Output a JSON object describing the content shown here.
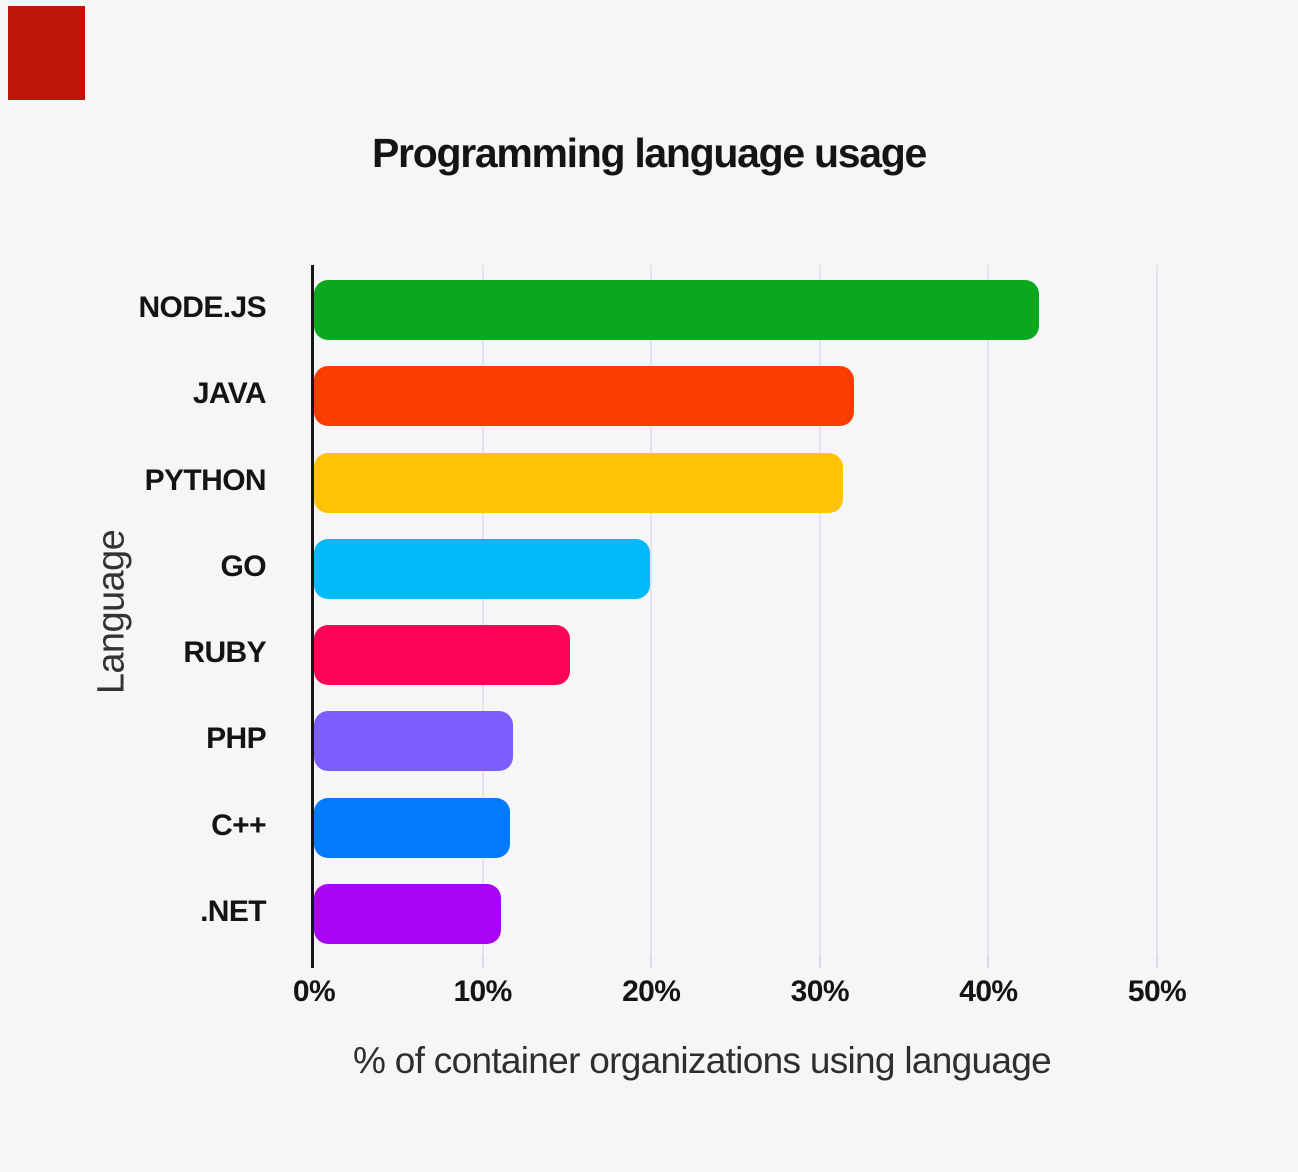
{
  "page": {
    "background_color": "#F6F5F8",
    "corner_marker_color": "#BE1507",
    "text_color": "#141414",
    "grid_color": "#E6E4E9",
    "axis_color": "#161616"
  },
  "chart_data": {
    "type": "bar",
    "orientation": "horizontal",
    "title": "Programming language usage",
    "xlabel": "% of container organizations using language",
    "ylabel": "Language",
    "categories": [
      "NODE.JS",
      "JAVA",
      "PYTHON",
      "GO",
      "RUBY",
      "PHP",
      "C++",
      ".NET"
    ],
    "values": [
      43,
      32,
      31.4,
      19.9,
      15.2,
      11.8,
      11.6,
      11.1
    ],
    "bar_colors": [
      "#09A81E",
      "#FB3D02",
      "#FFC303",
      "#00B9F9",
      "#FB0458",
      "#7D5DFB",
      "#0379FE",
      "#A705F3"
    ],
    "xlim": [
      0,
      50
    ],
    "x_tick_values": [
      0,
      10,
      20,
      30,
      40,
      50
    ],
    "x_tick_labels": [
      "0%",
      "10%",
      "20%",
      "30%",
      "40%",
      "50%"
    ],
    "grid": true,
    "legend": "none"
  }
}
